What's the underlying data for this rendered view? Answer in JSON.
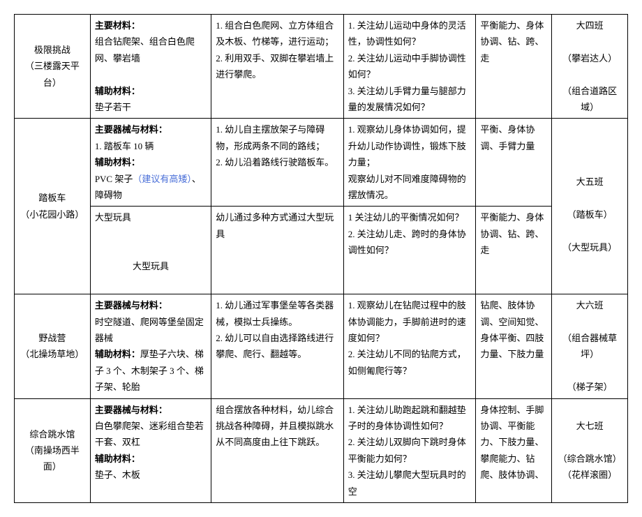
{
  "rows": [
    {
      "name_l1": "极限挑战",
      "name_l2": "（三楼露天平台）",
      "mat_main_h": "主要材料：",
      "mat_main": "组合钻爬架、组合白色爬网、攀岩墙",
      "mat_aux_h": "辅助材料：",
      "mat_aux": "垫子若干",
      "method_1": "1. 组合白色爬网、立方体组合及木板、竹梯等，进行运动；",
      "method_2": "2. 利用双手、双脚在攀岩墙上进行攀爬。",
      "focus_1": "1. 关注幼儿运动中身体的灵活性，协调性如何？",
      "focus_2": "2. 关注幼儿运动中手脚协调性如何？",
      "focus_3": "3. 关注幼儿手臂力量与腿部力量的发展情况如何？",
      "skill": "平衡能力、身体协调、钻、跨、走",
      "class_1": "大四班",
      "class_2": "（攀岩达人）",
      "class_3": "（组合道路区域）"
    },
    {
      "name_l1": "踏板车",
      "name_l2": "（小花园小路）",
      "mat_main_h": "主要器械与材料：",
      "mat_main": "1. 踏板车 10 辆",
      "mat_aux_h": "辅助材料：",
      "mat_aux_pre": "PVC 架子",
      "mat_aux_hint": "（建议有高矮）",
      "mat_aux_post": "、障碍物",
      "method_1": "1. 幼儿自主摆放架子与障碍物，形成两条不同的路线；",
      "method_2": "2. 幼儿沿着路线行驶踏板车。",
      "focus_1": "1. 观察幼儿身体协调如何，提升幼儿动作协调性，锻炼下肢力量；",
      "focus_2": "观察幼儿对不同难度障碍物的摆放情况。",
      "skill": "平衡、身体协调、手臂力量",
      "class_1": "大五班",
      "class_2": "（踏板车）"
    },
    {
      "name_l1": "大型玩具",
      "mat_main": "大型玩具",
      "method_1": "幼儿通过多种方式通过大型玩具",
      "focus_1": "1 关注幼儿的平衡情况如何？",
      "focus_2": "2. 关注幼儿走、跨时的身体协调性如何？",
      "skill": "平衡能力、身体协调、钻、跨、走",
      "class_1": "（大型玩具）"
    },
    {
      "name_l1": "野战营",
      "name_l2": "（北操场草地）",
      "mat_main_h": "主要器械与材料：",
      "mat_main": "时空隧道、爬网等堡垒固定器械",
      "mat_aux_h": "辅助材料：",
      "mat_aux": "厚垫子六块、梯子 3 个、木制架子 3 个、梯子架、轮胎",
      "method_1": "1. 幼儿通过军事堡垒等各类器械，模拟士兵操练。",
      "method_2": "2. 幼儿可以自由选择路线进行攀爬、爬行、翻越等。",
      "focus_1": "1. 观察幼儿在钻爬过程中的肢体协调能力，手脚前进时的速度如何？",
      "focus_2": "2. 关注幼儿不同的钻爬方式，如侧匍爬行等？",
      "skill": "钻爬、肢体协调、空间知觉、身体平衡、四肢力量、下肢力量",
      "class_1": "大六班",
      "class_2": "（组合器械草坪）",
      "class_3": "（梯子架）"
    },
    {
      "name_l1": "综合跳水馆",
      "name_l2": "（南操场西半面）",
      "mat_main_h": "主要器械与材料：",
      "mat_main": "白色攀爬架、迷彩组合垫若干套、双杠",
      "mat_aux_h": "辅助材料：",
      "mat_aux": "垫子、木板",
      "method_1": "组合摆放各种材料，幼儿综合挑战各种障碍，并且模拟跳水从不同高度由上往下跳跃。",
      "focus_1": "1. 关注幼儿助跑起跳和翻越垫子时的身体协调性如何？",
      "focus_2": "2. 关注幼儿双脚向下跳时身体平衡能力如何？",
      "focus_3": "3. 关注幼儿攀爬大型玩具时的空",
      "skill": "身体控制、手脚协调、平衡能力、下肢力量、攀爬能力、钻爬、肢体协调、",
      "class_1": "大七班",
      "class_2": "（综合跳水馆）（花样滚圈）"
    }
  ]
}
